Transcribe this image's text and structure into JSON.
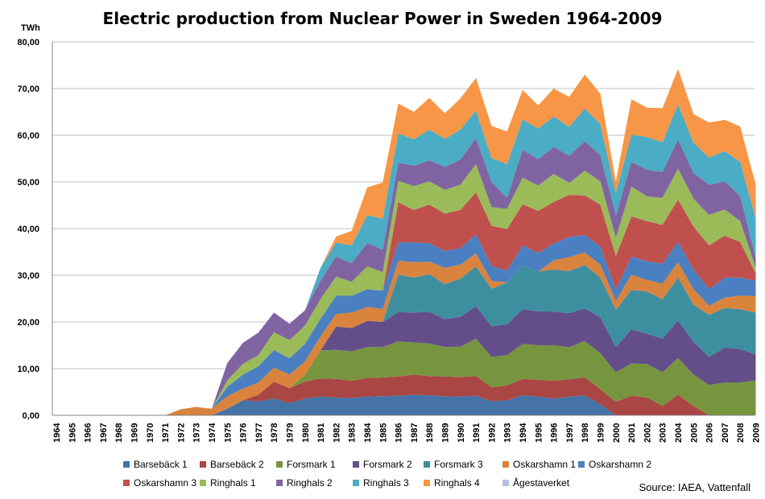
{
  "chart_data": {
    "type": "area",
    "stacked": true,
    "title": "Electric production from Nuclear Power in Sweden 1964-2009",
    "ylabel": "TWh",
    "xlabel": "",
    "ylim": [
      0,
      80
    ],
    "yticks": [
      0,
      10,
      20,
      30,
      40,
      50,
      60,
      70,
      80
    ],
    "ytick_labels": [
      "0,00",
      "10,00",
      "20,00",
      "30,00",
      "40,00",
      "50,00",
      "60,00",
      "70,00",
      "80,00"
    ],
    "grid": true,
    "legend_position": "bottom",
    "source": "Source: IAEA, Vattenfall",
    "categories": [
      "1964",
      "1965",
      "1966",
      "1967",
      "1968",
      "1969",
      "1970",
      "1971",
      "1972",
      "1973",
      "1974",
      "1975",
      "1976",
      "1977",
      "1978",
      "1979",
      "1980",
      "1981",
      "1982",
      "1983",
      "1984",
      "1985",
      "1986",
      "1987",
      "1988",
      "1989",
      "1990",
      "1991",
      "1992",
      "1993",
      "1994",
      "1995",
      "1996",
      "1997",
      "1998",
      "1999",
      "2000",
      "2001",
      "2002",
      "2003",
      "2004",
      "2005",
      "2006",
      "2007",
      "2008",
      "2009"
    ],
    "series": [
      {
        "name": "Barsebäck 1",
        "color": "#4572a7",
        "values": [
          0,
          0,
          0,
          0,
          0,
          0,
          0,
          0,
          0,
          0,
          0,
          1.4,
          3.2,
          3.0,
          3.6,
          2.6,
          3.6,
          4.0,
          3.8,
          3.7,
          4.0,
          4.1,
          4.2,
          4.4,
          4.3,
          4.1,
          4.0,
          4.2,
          3.0,
          3.2,
          4.3,
          4.0,
          3.6,
          4.0,
          4.2,
          2.4,
          0,
          0,
          0,
          0,
          0,
          0,
          0,
          0,
          0,
          0
        ]
      },
      {
        "name": "Barsebäck 2",
        "color": "#aa4643",
        "values": [
          0,
          0,
          0,
          0,
          0,
          0,
          0,
          0,
          0,
          0,
          0,
          0,
          0,
          1.4,
          3.6,
          3.2,
          3.6,
          3.9,
          4.0,
          3.7,
          4.0,
          4.0,
          4.1,
          4.3,
          4.1,
          4.2,
          4.2,
          4.2,
          3.0,
          3.2,
          3.5,
          3.6,
          3.8,
          3.7,
          3.9,
          3.2,
          2.9,
          4.2,
          3.8,
          2.0,
          4.4,
          2.0,
          0,
          0,
          0,
          0
        ]
      },
      {
        "name": "Forsmark 1",
        "color": "#77953f",
        "values": [
          0,
          0,
          0,
          0,
          0,
          0,
          0,
          0,
          0,
          0,
          0,
          0,
          0,
          0,
          0,
          0,
          1.5,
          6.0,
          6.2,
          6.3,
          6.6,
          6.5,
          7.5,
          6.9,
          7.0,
          6.3,
          6.5,
          8.0,
          6.5,
          6.5,
          7.5,
          7.4,
          7.6,
          6.9,
          7.8,
          7.7,
          6.3,
          6.9,
          7.2,
          7.2,
          7.9,
          6.7,
          6.5,
          7.0,
          7.0,
          7.5
        ]
      },
      {
        "name": "Forsmark 2",
        "color": "#644e8a",
        "values": [
          0,
          0,
          0,
          0,
          0,
          0,
          0,
          0,
          0,
          0,
          0,
          0,
          0,
          0,
          0,
          0,
          0,
          0,
          5.0,
          5.0,
          5.6,
          5.4,
          6.3,
          6.4,
          6.8,
          6.0,
          6.4,
          7.0,
          6.6,
          6.6,
          7.4,
          7.3,
          7.2,
          7.3,
          7.0,
          7.7,
          5.4,
          7.3,
          6.5,
          7.2,
          8.0,
          7.0,
          6.0,
          7.5,
          7.2,
          5.5
        ]
      },
      {
        "name": "Forsmark 3",
        "color": "#3d8fa0",
        "values": [
          0,
          0,
          0,
          0,
          0,
          0,
          0,
          0,
          0,
          0,
          0,
          0,
          0,
          0,
          0,
          0,
          0,
          0,
          0,
          0,
          0,
          0,
          8.0,
          7.5,
          8.0,
          7.5,
          8.2,
          8.5,
          8.0,
          9.0,
          9.5,
          8.5,
          9.0,
          9.0,
          9.3,
          8.5,
          8.0,
          8.5,
          9.0,
          8.5,
          9.2,
          8.0,
          9.0,
          8.5,
          8.5,
          9.0
        ]
      },
      {
        "name": "Oskarshamn 1",
        "color": "#d9833c",
        "values": [
          0,
          0,
          0,
          0,
          0,
          0,
          0,
          0,
          1.3,
          1.8,
          1.4,
          2.7,
          2.5,
          2.6,
          3.0,
          2.9,
          2.9,
          3.0,
          2.7,
          3.3,
          3.0,
          2.8,
          3.0,
          3.3,
          2.7,
          3.5,
          3.0,
          2.8,
          1.7,
          0,
          0,
          0,
          2.0,
          3.0,
          2.7,
          2.8,
          1.9,
          3.2,
          2.5,
          3.3,
          3.3,
          3.3,
          2.0,
          2.2,
          2.9,
          3.6
        ]
      },
      {
        "name": "Oskarshamn 2",
        "color": "#4a7fc1",
        "values": [
          0,
          0,
          0,
          0,
          0,
          0,
          0,
          0,
          0,
          0,
          0,
          2.0,
          3.0,
          3.5,
          3.8,
          3.5,
          3.7,
          3.8,
          3.9,
          3.6,
          3.8,
          3.9,
          4.0,
          4.2,
          4.0,
          3.6,
          3.5,
          4.1,
          3.2,
          2.5,
          4.2,
          4.0,
          3.6,
          4.3,
          3.7,
          3.9,
          2.4,
          3.9,
          4.0,
          4.3,
          4.4,
          4.2,
          3.5,
          4.3,
          3.9,
          3.2
        ]
      },
      {
        "name": "Oskarshamn 3",
        "color": "#c0504d",
        "values": [
          0,
          0,
          0,
          0,
          0,
          0,
          0,
          0,
          0,
          0,
          0,
          0,
          0,
          0,
          0,
          0,
          0,
          0,
          0,
          0,
          0,
          0,
          8.5,
          7.0,
          8.2,
          8.0,
          8.2,
          9.0,
          8.6,
          8.9,
          8.8,
          9.0,
          8.9,
          9.0,
          8.5,
          8.9,
          7.2,
          8.6,
          8.6,
          8.3,
          9.0,
          9.2,
          9.4,
          9.0,
          7.6,
          1.6
        ]
      },
      {
        "name": "Ringhals 1",
        "color": "#9bbb59",
        "values": [
          0,
          0,
          0,
          0,
          0,
          0,
          0,
          0,
          0,
          0,
          0,
          1.4,
          2.3,
          2.4,
          3.8,
          3.9,
          3.9,
          4.2,
          4.1,
          3.0,
          4.9,
          4.0,
          4.6,
          5.1,
          5.0,
          5.1,
          5.4,
          6.0,
          4.0,
          4.3,
          5.7,
          5.4,
          6.0,
          2.6,
          5.3,
          5.0,
          3.9,
          6.4,
          5.3,
          5.8,
          6.6,
          6.0,
          6.5,
          5.6,
          4.5,
          1.2
        ]
      },
      {
        "name": "Ringhals 2",
        "color": "#8064a2",
        "values": [
          0,
          0,
          0,
          0,
          0,
          0,
          0,
          0,
          0,
          0,
          0,
          3.7,
          4.5,
          4.8,
          4.2,
          3.5,
          3.3,
          4.0,
          4.3,
          4.0,
          5.0,
          4.8,
          3.9,
          4.4,
          4.5,
          4.9,
          5.4,
          5.6,
          5.4,
          2.4,
          6.0,
          5.7,
          5.8,
          5.8,
          6.3,
          5.7,
          4.8,
          5.3,
          5.7,
          5.5,
          6.3,
          5.5,
          6.5,
          6.0,
          5.4,
          2.0
        ]
      },
      {
        "name": "Ringhals 3",
        "color": "#4bacc6",
        "values": [
          0,
          0,
          0,
          0,
          0,
          0,
          0,
          0,
          0,
          0,
          0,
          0,
          0,
          0,
          0,
          0,
          0,
          2.7,
          3.0,
          3.8,
          6.0,
          6.6,
          6.3,
          5.6,
          6.6,
          6.0,
          6.4,
          5.9,
          5.1,
          7.2,
          6.5,
          6.5,
          6.5,
          6.2,
          7.0,
          6.6,
          4.8,
          5.8,
          7.0,
          6.4,
          7.5,
          6.5,
          5.8,
          6.5,
          7.3,
          8.5
        ]
      },
      {
        "name": "Ringhals 4",
        "color": "#f79646",
        "values": [
          0,
          0,
          0,
          0,
          0,
          0,
          0,
          0,
          0,
          0,
          0,
          0,
          0,
          0,
          0,
          0,
          0,
          0,
          1.3,
          3.1,
          5.9,
          7.8,
          6.4,
          5.9,
          6.8,
          5.5,
          6.7,
          7.0,
          6.9,
          7.0,
          6.3,
          5.0,
          6.0,
          6.4,
          7.3,
          6.5,
          2.5,
          7.6,
          6.3,
          7.3,
          7.6,
          6.1,
          7.5,
          6.7,
          7.6,
          7.3
        ]
      },
      {
        "name": "Ågestaverket",
        "color": "#b3c1e0",
        "values": [
          0,
          0,
          0,
          0,
          0,
          0,
          0,
          0,
          0,
          0,
          0,
          0,
          0,
          0,
          0,
          0,
          0,
          0,
          0,
          0,
          0,
          0,
          0,
          0,
          0,
          0,
          0,
          0,
          0,
          0,
          0,
          0,
          0,
          0,
          0,
          0,
          0,
          0,
          0,
          0,
          0,
          0,
          0,
          0,
          0,
          0
        ]
      }
    ]
  }
}
